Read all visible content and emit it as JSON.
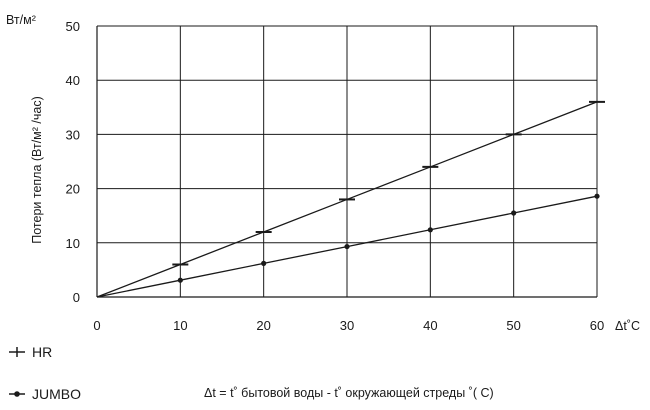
{
  "chart_data": {
    "type": "line",
    "ylabel": "Потери тепла (Вт/м² /час)",
    "y_unit": "Вт/м²",
    "x_unit": "Δt˚C",
    "xlim": [
      0,
      60
    ],
    "ylim": [
      0,
      50
    ],
    "x_ticks": [
      0,
      10,
      20,
      30,
      40,
      50,
      60
    ],
    "y_ticks": [
      0,
      10,
      20,
      30,
      40,
      50
    ],
    "grid": true,
    "legend_position": "bottom-left",
    "series": [
      {
        "name": "HR",
        "marker": "dash",
        "color": "#1a1a1a",
        "x": [
          0,
          10,
          20,
          30,
          40,
          50,
          60
        ],
        "values": [
          0,
          6,
          12,
          18,
          24,
          30,
          36
        ]
      },
      {
        "name": "JUMBO",
        "marker": "dot",
        "color": "#1a1a1a",
        "x": [
          0,
          10,
          20,
          30,
          40,
          50,
          60
        ],
        "values": [
          0,
          3.1,
          6.2,
          9.3,
          12.4,
          15.5,
          18.6
        ]
      }
    ],
    "note": "Δt = t˚ бытовой воды - t˚ окружающей стреды ˚( C)"
  }
}
